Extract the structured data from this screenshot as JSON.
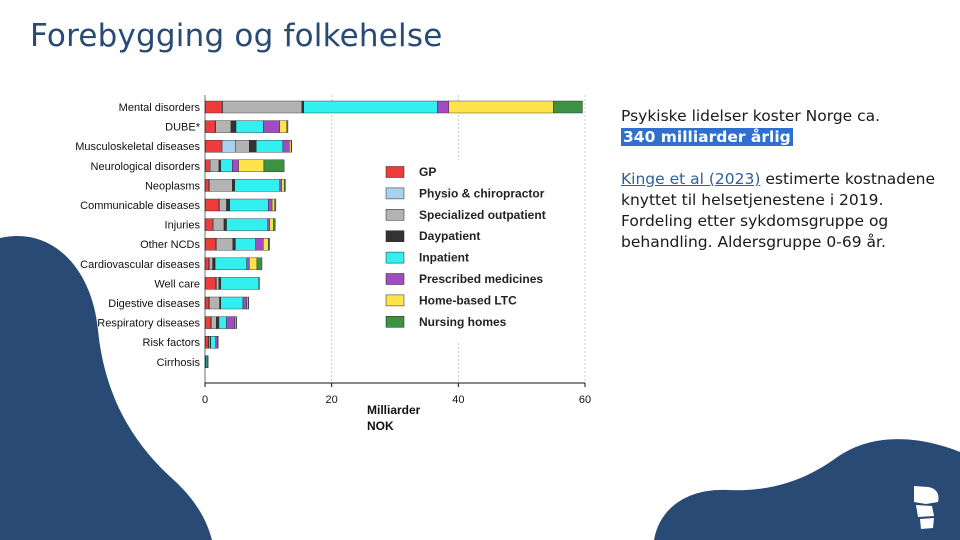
{
  "slide": {
    "title": "Forebygging og folkehelse",
    "text_line1": "Psykiske lidelser koster Norge ca.",
    "text_highlight": "340 milliarder årlig",
    "text_link": "Kinge et al (2023)",
    "text_rest": " estimerte kostnadene knyttet til helsetjenestene i 2019. Fordeling etter sykdomsgruppe og behandling. Aldersgruppe 0-69 år."
  },
  "colors": {
    "blob": "#284a74",
    "title": "#284a74",
    "highlight": "#2f6fd0",
    "link": "#2c5f9e"
  },
  "chart_data": {
    "type": "bar",
    "orientation": "horizontal",
    "stacked": true,
    "xlabel": "Milliarder NOK",
    "ylabel": "",
    "xlim": [
      0,
      60
    ],
    "xticks": [
      0,
      20,
      40,
      60
    ],
    "grid": "vertical dashed",
    "legend_position": "right",
    "categories": [
      "Mental disorders",
      "DUBE*",
      "Musculoskeletal diseases",
      "Neurological disorders",
      "Neoplasms",
      "Communicable diseases",
      "Injuries",
      "Other NCDs",
      "Cardiovascular diseases",
      "Well care",
      "Digestive diseases",
      "Respiratory diseases",
      "Risk factors",
      "Cirrhosis"
    ],
    "series": [
      {
        "name": "GP",
        "color": "#ee3b3b",
        "values": [
          2.7,
          1.6,
          2.7,
          0.7,
          0.6,
          2.2,
          1.2,
          1.7,
          0.6,
          1.7,
          0.6,
          0.9,
          0.5,
          0.1
        ]
      },
      {
        "name": "Physio & chiropractor",
        "color": "#a9d2f0",
        "values": [
          0.1,
          0.1,
          2.1,
          0.2,
          0.1,
          0.1,
          0.2,
          0.1,
          0.1,
          0.1,
          0.1,
          0.1,
          0.1,
          0.0
        ]
      },
      {
        "name": "Specialized outpatient",
        "color": "#b3b3b3",
        "values": [
          12.5,
          2.4,
          2.2,
          1.3,
          3.6,
          1.1,
          1.6,
          2.6,
          0.5,
          0.4,
          1.6,
          0.8,
          0.2,
          0.1
        ]
      },
      {
        "name": "Daypatient",
        "color": "#333333",
        "values": [
          0.3,
          0.8,
          1.1,
          0.3,
          0.4,
          0.5,
          0.4,
          0.4,
          0.4,
          0.3,
          0.2,
          0.4,
          0.1,
          0.0
        ]
      },
      {
        "name": "Inpatient",
        "color": "#33f0f0",
        "values": [
          21.1,
          4.3,
          4.2,
          1.8,
          7.1,
          6.1,
          6.5,
          3.2,
          5.0,
          6.0,
          3.5,
          1.2,
          0.8,
          0.2
        ]
      },
      {
        "name": "Prescribed medicines",
        "color": "#a24cc2",
        "values": [
          1.8,
          2.6,
          1.0,
          1.0,
          0.3,
          0.6,
          0.3,
          1.2,
          0.4,
          0.0,
          0.6,
          1.3,
          0.3,
          0.0
        ]
      },
      {
        "name": "Home-based LTC",
        "color": "#ffe34a",
        "values": [
          16.5,
          1.1,
          0.3,
          4.0,
          0.4,
          0.4,
          0.6,
          0.8,
          1.2,
          0.0,
          0.2,
          0.2,
          0.1,
          0.0
        ]
      },
      {
        "name": "Nursing homes",
        "color": "#3d9142",
        "values": [
          4.6,
          0.2,
          0.1,
          3.2,
          0.2,
          0.2,
          0.3,
          0.2,
          0.8,
          0.1,
          0.1,
          0.1,
          0.0,
          0.1
        ]
      }
    ]
  }
}
